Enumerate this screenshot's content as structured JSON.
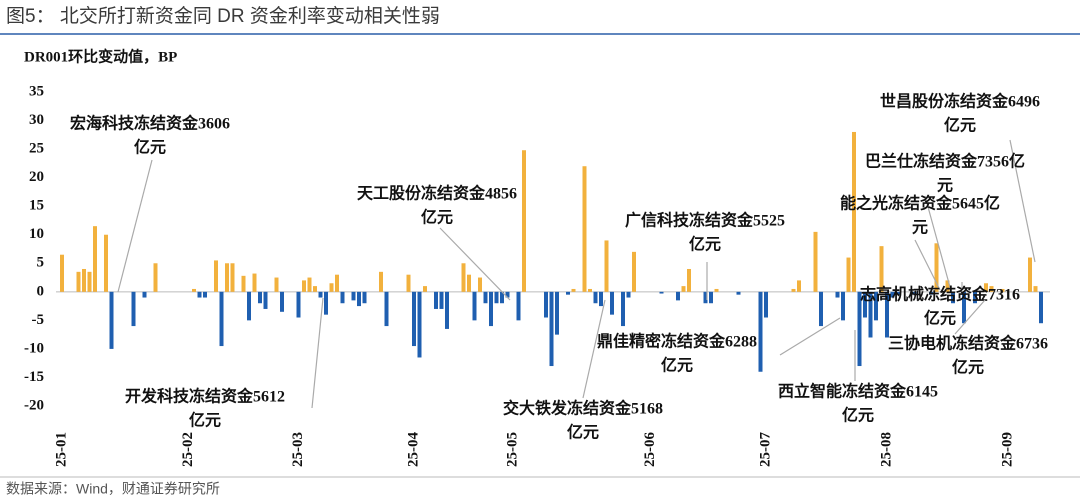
{
  "chart_data": {
    "type": "bar",
    "title": "图5： 北交所打新资金同 DR 资金利率变动相关性弱",
    "y_label": "DR001环比变动值，BP",
    "source": "数据来源：Wind，财通证券研究所",
    "positive_color": "#f2b13d",
    "negative_color": "#1f5fb0",
    "ylim": [
      -20,
      35
    ],
    "yticks": [
      -20,
      -15,
      -10,
      -5,
      0,
      5,
      10,
      15,
      20,
      25,
      30,
      35
    ],
    "categories": [
      "25-01",
      null,
      null,
      null,
      null,
      null,
      null,
      null,
      null,
      null,
      null,
      null,
      null,
      null,
      null,
      null,
      null,
      null,
      null,
      null,
      null,
      null,
      null,
      "25-02",
      null,
      null,
      null,
      null,
      null,
      null,
      null,
      null,
      null,
      null,
      null,
      null,
      null,
      null,
      null,
      null,
      null,
      null,
      null,
      "25-03",
      null,
      null,
      null,
      null,
      null,
      null,
      null,
      null,
      null,
      null,
      null,
      null,
      null,
      null,
      null,
      null,
      null,
      null,
      null,
      null,
      "25-04",
      null,
      null,
      null,
      null,
      null,
      null,
      null,
      null,
      null,
      null,
      null,
      null,
      null,
      null,
      null,
      null,
      null,
      "25-05",
      null,
      null,
      null,
      null,
      null,
      null,
      null,
      null,
      null,
      null,
      null,
      null,
      null,
      null,
      null,
      null,
      null,
      null,
      null,
      null,
      null,
      null,
      null,
      null,
      "25-06",
      null,
      null,
      null,
      null,
      null,
      null,
      null,
      null,
      null,
      null,
      null,
      null,
      null,
      null,
      null,
      null,
      null,
      null,
      null,
      null,
      "25-07",
      null,
      null,
      null,
      null,
      null,
      null,
      null,
      null,
      null,
      null,
      null,
      null,
      null,
      null,
      null,
      null,
      null,
      null,
      null,
      null,
      null,
      "25-08",
      null,
      null,
      null,
      null,
      null,
      null,
      null,
      null,
      null,
      null,
      null,
      null,
      null,
      null,
      null,
      null,
      null,
      null,
      null,
      null,
      null,
      "25-09",
      null,
      null,
      null,
      null,
      null,
      null,
      null
    ],
    "values": [
      6.5,
      0,
      0,
      3.5,
      4,
      3.5,
      11.5,
      0,
      10,
      -10,
      0,
      0,
      0,
      -6,
      0,
      -1,
      0,
      5,
      0,
      0,
      0,
      0,
      0,
      0,
      0.5,
      -1,
      -1,
      0,
      5.5,
      -9.5,
      5,
      5,
      0,
      2.8,
      -5,
      3.2,
      -2,
      -3,
      0,
      2.5,
      -3.5,
      0,
      0,
      -4.5,
      2,
      2.5,
      1,
      -1,
      -4,
      1.5,
      3,
      -2,
      0,
      -1.5,
      -2.5,
      -2,
      0,
      0,
      3.5,
      -6,
      0,
      0,
      0,
      3,
      -9.5,
      -11.5,
      1,
      0,
      -3,
      -3,
      -6.5,
      0,
      0,
      5,
      3,
      -5,
      2.5,
      -2,
      -6,
      -2,
      -2,
      -1,
      0,
      -5,
      24.8,
      0,
      0,
      0,
      -4.5,
      -13,
      -7.5,
      0,
      -0.5,
      0.5,
      0,
      22,
      0.5,
      -2,
      -2.5,
      9,
      -4,
      0,
      -6,
      -1,
      7,
      0,
      0,
      0,
      0,
      -0.3,
      0,
      0,
      -1.5,
      1,
      4,
      0,
      0,
      -2,
      -2,
      0.5,
      0,
      0,
      0,
      -0.5,
      0,
      0,
      0,
      -14,
      -4.5,
      0,
      0,
      0,
      0,
      0.5,
      2,
      0,
      0,
      10.5,
      -6,
      0,
      0,
      -1,
      -5,
      6,
      28,
      -13,
      -4.5,
      -8,
      -5,
      8,
      -8,
      -1,
      -0.5,
      0,
      0,
      -0.5,
      0,
      0,
      -0.5,
      8.5,
      0,
      2,
      -2,
      0,
      -5.5,
      0,
      -2,
      0,
      1.5,
      1,
      0,
      0.5,
      0,
      0,
      0,
      0,
      6,
      1,
      -5.5,
      0
    ],
    "annotations": [
      {
        "text": [
          "宏海科技冻结资金3606",
          "亿元"
        ]
      },
      {
        "text": [
          "开发科技冻结资金5612",
          "亿元"
        ]
      },
      {
        "text": [
          "天工股份冻结资金4856",
          "亿元"
        ]
      },
      {
        "text": [
          "交大铁发冻结资金5168",
          "亿元"
        ]
      },
      {
        "text": [
          "广信科技冻结资金5525",
          "亿元"
        ]
      },
      {
        "text": [
          "鼎佳精密冻结资金6288",
          "亿元"
        ]
      },
      {
        "text": [
          "西立智能冻结资金6145",
          "亿元"
        ]
      },
      {
        "text": [
          "世昌股份冻结资金6496",
          "亿元"
        ]
      },
      {
        "text": [
          "巴兰仕冻结资金7356亿",
          "元"
        ]
      },
      {
        "text": [
          "能之光冻结资金5645亿",
          "元"
        ]
      },
      {
        "text": [
          "志高机械冻结资金7316",
          "亿元"
        ]
      },
      {
        "text": [
          "三协电机冻结资金6736",
          "亿元"
        ]
      }
    ]
  }
}
